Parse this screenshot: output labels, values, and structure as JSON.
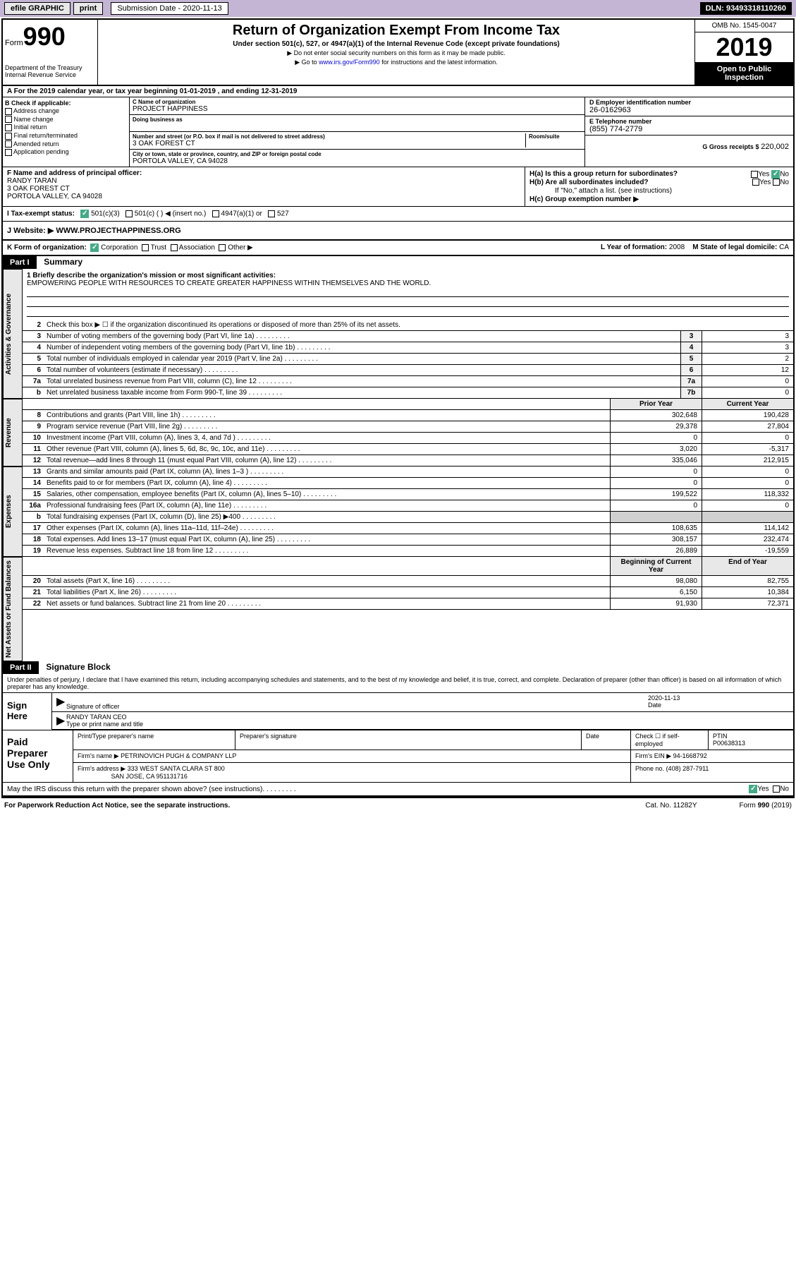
{
  "header": {
    "efile": "efile GRAPHIC",
    "print": "print",
    "sub_label": "Submission Date - 2020-11-13",
    "dln": "DLN: 93493318110260"
  },
  "form": {
    "form_label": "Form",
    "form_num": "990",
    "dept": "Department of the Treasury",
    "irs": "Internal Revenue Service",
    "title": "Return of Organization Exempt From Income Tax",
    "subtitle": "Under section 501(c), 527, or 4947(a)(1) of the Internal Revenue Code (except private foundations)",
    "arrow1": "▶ Do not enter social security numbers on this form as it may be made public.",
    "arrow2_pre": "▶ Go to ",
    "arrow2_link": "www.irs.gov/Form990",
    "arrow2_post": " for instructions and the latest information.",
    "omb": "OMB No. 1545-0047",
    "year": "2019",
    "open": "Open to Public Inspection"
  },
  "period": "A For the 2019 calendar year, or tax year beginning 01-01-2019   , and ending 12-31-2019",
  "section_b": {
    "label": "B Check if applicable:",
    "opts": [
      "Address change",
      "Name change",
      "Initial return",
      "Final return/terminated",
      "Amended return",
      "Application pending"
    ]
  },
  "section_c": {
    "name_label": "C Name of organization",
    "name": "PROJECT HAPPINESS",
    "dba_label": "Doing business as",
    "addr_label": "Number and street (or P.O. box if mail is not delivered to street address)",
    "room_label": "Room/suite",
    "addr": "3 OAK FOREST CT",
    "city_label": "City or town, state or province, country, and ZIP or foreign postal code",
    "city": "PORTOLA VALLEY, CA  94028"
  },
  "section_d": {
    "label": "D Employer identification number",
    "val": "26-0162963"
  },
  "section_e": {
    "label": "E Telephone number",
    "val": "(855) 774-2779"
  },
  "section_g": {
    "label": "G Gross receipts $",
    "val": "220,002"
  },
  "section_f": {
    "label": "F  Name and address of principal officer:",
    "name": "RANDY TARAN",
    "addr1": "3 OAK FOREST CT",
    "addr2": "PORTOLA VALLEY, CA  94028"
  },
  "section_h": {
    "a": "H(a)  Is this a group return for subordinates?",
    "b": "H(b)  Are all subordinates included?",
    "b_note": "If \"No,\" attach a list. (see instructions)",
    "c": "H(c)  Group exemption number ▶",
    "yes": "Yes",
    "no": "No"
  },
  "row_i": {
    "label": "I  Tax-exempt status:",
    "opt1": "501(c)(3)",
    "opt2": "501(c) (  ) ◀ (insert no.)",
    "opt3": "4947(a)(1) or",
    "opt4": "527"
  },
  "row_j": {
    "label": "J   Website: ▶",
    "val": "WWW.PROJECTHAPPINESS.ORG"
  },
  "row_k": {
    "label": "K Form of organization:",
    "corp": "Corporation",
    "trust": "Trust",
    "assoc": "Association",
    "other": "Other ▶",
    "l_label": "L Year of formation:",
    "l_val": "2008",
    "m_label": "M State of legal domicile:",
    "m_val": "CA"
  },
  "part1": {
    "header": "Part I",
    "title": "Summary",
    "line1_label": "1  Briefly describe the organization's mission or most significant activities:",
    "line1_val": "EMPOWERING PEOPLE WITH RESOURCES TO CREATE GREATER HAPPINESS WITHIN THEMSELVES AND THE WORLD.",
    "line2": "Check this box ▶ ☐  if the organization discontinued its operations or disposed of more than 25% of its net assets.",
    "sides": {
      "gov": "Activities & Governance",
      "rev": "Revenue",
      "exp": "Expenses",
      "net": "Net Assets or Fund Balances"
    },
    "cols": {
      "prior": "Prior Year",
      "current": "Current Year",
      "begin": "Beginning of Current Year",
      "end": "End of Year"
    },
    "rows_gov": [
      {
        "n": "3",
        "d": "Number of voting members of the governing body (Part VI, line 1a)",
        "b": "3",
        "v": "3"
      },
      {
        "n": "4",
        "d": "Number of independent voting members of the governing body (Part VI, line 1b)",
        "b": "4",
        "v": "3"
      },
      {
        "n": "5",
        "d": "Total number of individuals employed in calendar year 2019 (Part V, line 2a)",
        "b": "5",
        "v": "2"
      },
      {
        "n": "6",
        "d": "Total number of volunteers (estimate if necessary)",
        "b": "6",
        "v": "12"
      },
      {
        "n": "7a",
        "d": "Total unrelated business revenue from Part VIII, column (C), line 12",
        "b": "7a",
        "v": "0"
      },
      {
        "n": "b",
        "d": "Net unrelated business taxable income from Form 990-T, line 39",
        "b": "7b",
        "v": "0"
      }
    ],
    "rows_rev": [
      {
        "n": "8",
        "d": "Contributions and grants (Part VIII, line 1h)",
        "p": "302,648",
        "c": "190,428"
      },
      {
        "n": "9",
        "d": "Program service revenue (Part VIII, line 2g)",
        "p": "29,378",
        "c": "27,804"
      },
      {
        "n": "10",
        "d": "Investment income (Part VIII, column (A), lines 3, 4, and 7d )",
        "p": "0",
        "c": "0"
      },
      {
        "n": "11",
        "d": "Other revenue (Part VIII, column (A), lines 5, 6d, 8c, 9c, 10c, and 11e)",
        "p": "3,020",
        "c": "-5,317"
      },
      {
        "n": "12",
        "d": "Total revenue—add lines 8 through 11 (must equal Part VIII, column (A), line 12)",
        "p": "335,046",
        "c": "212,915"
      }
    ],
    "rows_exp": [
      {
        "n": "13",
        "d": "Grants and similar amounts paid (Part IX, column (A), lines 1–3 )",
        "p": "0",
        "c": "0"
      },
      {
        "n": "14",
        "d": "Benefits paid to or for members (Part IX, column (A), line 4)",
        "p": "0",
        "c": "0"
      },
      {
        "n": "15",
        "d": "Salaries, other compensation, employee benefits (Part IX, column (A), lines 5–10)",
        "p": "199,522",
        "c": "118,332"
      },
      {
        "n": "16a",
        "d": "Professional fundraising fees (Part IX, column (A), line 11e)",
        "p": "0",
        "c": "0"
      },
      {
        "n": "b",
        "d": "Total fundraising expenses (Part IX, column (D), line 25) ▶400",
        "p": "",
        "c": "",
        "gray": true
      },
      {
        "n": "17",
        "d": "Other expenses (Part IX, column (A), lines 11a–11d, 11f–24e)",
        "p": "108,635",
        "c": "114,142"
      },
      {
        "n": "18",
        "d": "Total expenses. Add lines 13–17 (must equal Part IX, column (A), line 25)",
        "p": "308,157",
        "c": "232,474"
      },
      {
        "n": "19",
        "d": "Revenue less expenses. Subtract line 18 from line 12",
        "p": "26,889",
        "c": "-19,559"
      }
    ],
    "rows_net": [
      {
        "n": "20",
        "d": "Total assets (Part X, line 16)",
        "p": "98,080",
        "c": "82,755"
      },
      {
        "n": "21",
        "d": "Total liabilities (Part X, line 26)",
        "p": "6,150",
        "c": "10,384"
      },
      {
        "n": "22",
        "d": "Net assets or fund balances. Subtract line 21 from line 20",
        "p": "91,930",
        "c": "72,371"
      }
    ]
  },
  "part2": {
    "header": "Part II",
    "title": "Signature Block",
    "perjury": "Under penalties of perjury, I declare that I have examined this return, including accompanying schedules and statements, and to the best of my knowledge and belief, it is true, correct, and complete. Declaration of preparer (other than officer) is based on all information of which preparer has any knowledge.",
    "sign_here": "Sign Here",
    "sig_officer": "Signature of officer",
    "sig_date": "2020-11-13",
    "date_label": "Date",
    "sig_name": "RANDY TARAN  CEO",
    "sig_name_label": "Type or print name and title",
    "paid": "Paid Preparer Use Only",
    "prep_name_label": "Print/Type preparer's name",
    "prep_sig_label": "Preparer's signature",
    "prep_date_label": "Date",
    "prep_check": "Check ☐ if self-employed",
    "ptin_label": "PTIN",
    "ptin": "P00638313",
    "firm_name_label": "Firm's name    ▶",
    "firm_name": "PETRINOVICH PUGH & COMPANY LLP",
    "firm_ein_label": "Firm's EIN ▶",
    "firm_ein": "94-1668792",
    "firm_addr_label": "Firm's address ▶",
    "firm_addr1": "333 WEST SANTA CLARA ST 800",
    "firm_addr2": "SAN JOSE, CA  951131716",
    "phone_label": "Phone no.",
    "phone": "(408) 287-7911",
    "discuss": "May the IRS discuss this return with the preparer shown above? (see instructions)",
    "paperwork": "For Paperwork Reduction Act Notice, see the separate instructions.",
    "cat": "Cat. No. 11282Y",
    "form_foot": "Form 990 (2019)"
  }
}
